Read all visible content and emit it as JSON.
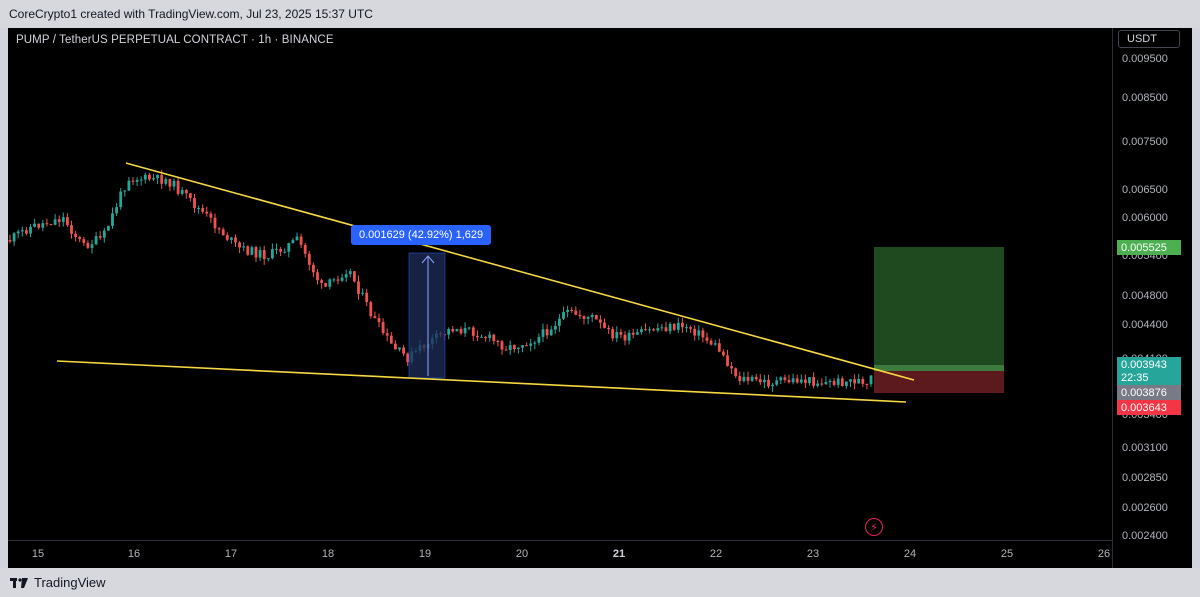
{
  "header": {
    "credit": "CoreCrypto1 created with TradingView.com, Jul 23, 2025 15:37 UTC"
  },
  "chart": {
    "symbol_title": "PUMP / TetherUS PERPETUAL CONTRACT · 1h · BINANCE",
    "currency": "USDT",
    "price_ticks": [
      "0.009500",
      "0.008500",
      "0.007500",
      "0.006500",
      "0.006000",
      "0.005400",
      "0.004800",
      "0.004400",
      "0.004100",
      "0.003400",
      "0.003100",
      "0.002850",
      "0.002600",
      "0.002400"
    ],
    "time_ticks": [
      "15",
      "16",
      "17",
      "18",
      "19",
      "20",
      "21",
      "22",
      "23",
      "24",
      "25",
      "26"
    ],
    "bold_time_tick": "21",
    "measure_label": "0.001629 (42.92%) 1,629",
    "labels": {
      "target": "0.005525",
      "current": "0.003943",
      "countdown": "22:35",
      "entry": "0.003876",
      "stop": "0.003643"
    },
    "colors": {
      "up": "#26a69a",
      "down": "#ef5350",
      "trendline": "#f5d742",
      "target_zone": "#1f4a1f",
      "stop_zone": "#5c1a1f",
      "measure": "#2962ff"
    }
  },
  "footer": {
    "brand": "TradingView"
  }
}
